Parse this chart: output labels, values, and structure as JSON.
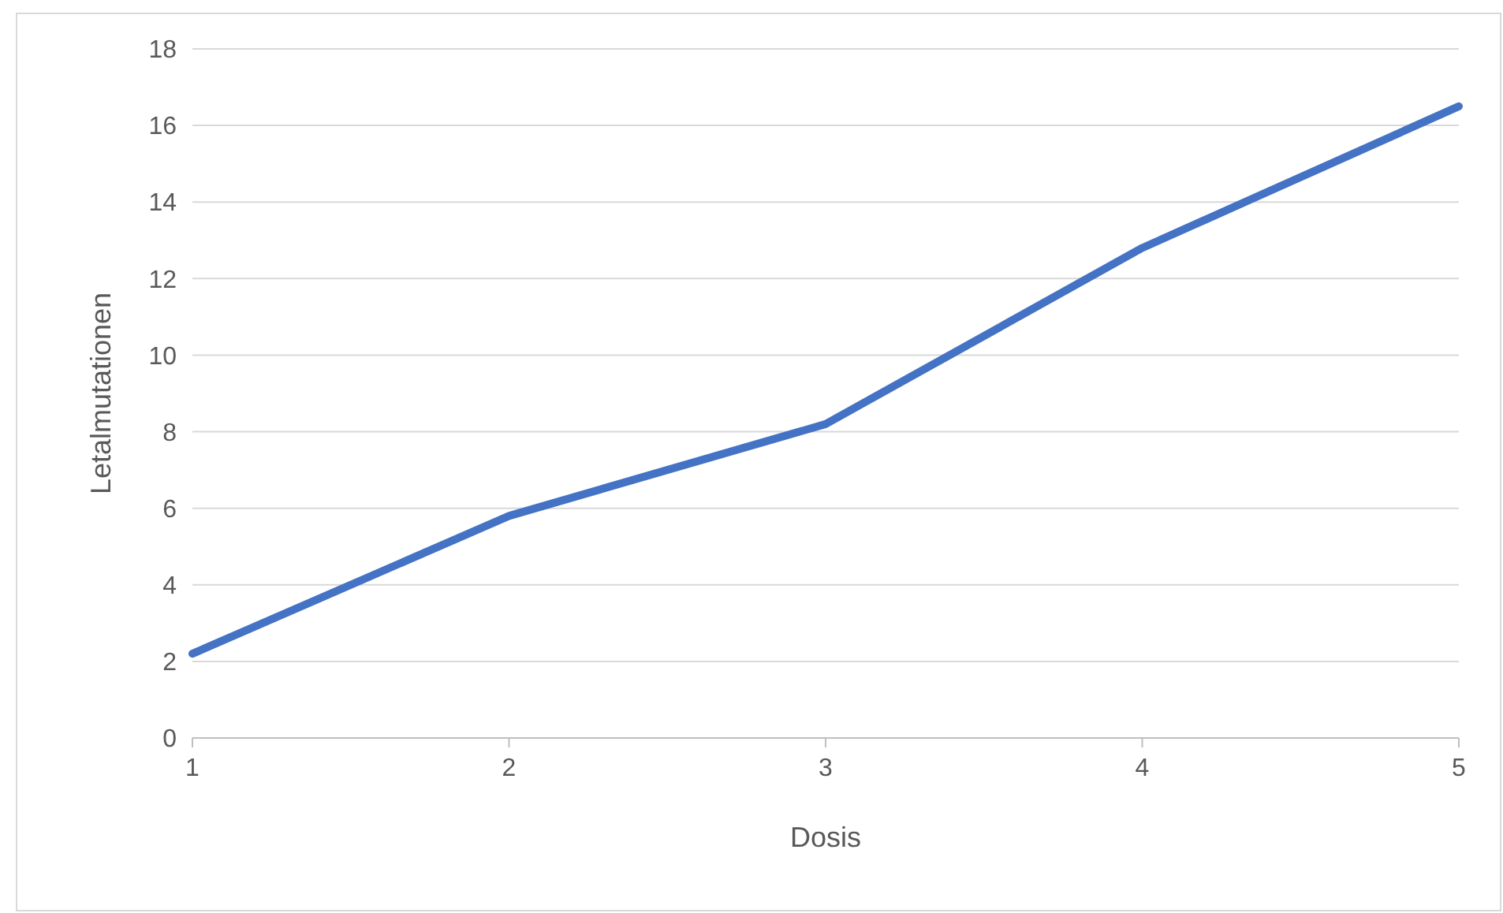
{
  "chart_data": {
    "type": "line",
    "xlabel": "Dosis",
    "ylabel": "Letalmutationen",
    "x": [
      1,
      2,
      3,
      4,
      5
    ],
    "series": [
      {
        "color": "#4472c4",
        "values": [
          2.2,
          5.8,
          8.2,
          12.8,
          16.5
        ]
      }
    ],
    "xlim": [
      1,
      5
    ],
    "xticks": [
      1,
      2,
      3,
      4,
      5
    ],
    "ylim": [
      0,
      18
    ],
    "yticks": [
      0,
      2,
      4,
      6,
      8,
      10,
      12,
      14,
      16,
      18
    ],
    "grid": "y",
    "marker": "none",
    "line_style": "solid"
  }
}
